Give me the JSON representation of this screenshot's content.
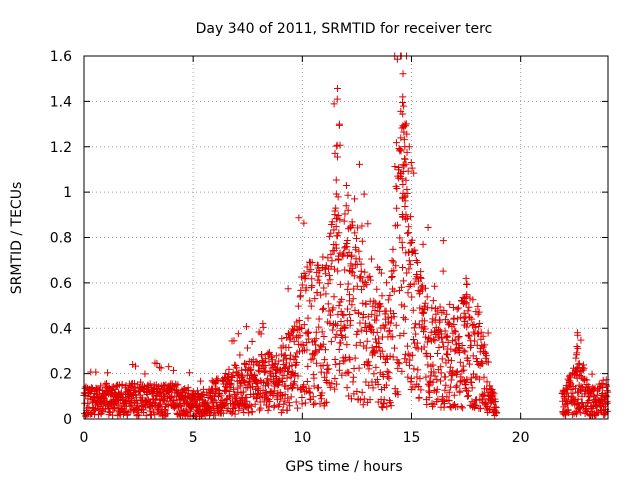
{
  "chart_data": {
    "type": "scatter",
    "title": "Day 340 of 2011, SRMTID for receiver terc",
    "xlabel": "GPS time / hours",
    "ylabel": "SRMTID / TECUs",
    "xlim": [
      0,
      24
    ],
    "ylim": [
      0,
      1.6
    ],
    "xticks": [
      0,
      5,
      10,
      15,
      20
    ],
    "xtick_labels": [
      "0",
      "5",
      "10",
      "15",
      "20"
    ],
    "yticks": [
      0,
      0.2,
      0.4,
      0.6,
      0.8,
      1.0,
      1.2,
      1.4,
      1.6
    ],
    "ytick_labels": [
      "0",
      "0.2",
      "0.4",
      "0.6",
      "0.8",
      "1",
      "1.2",
      "1.4",
      "1.6"
    ],
    "grid": true,
    "marker": "+",
    "color": "#e00000",
    "envelope_hours": [
      0,
      1,
      2,
      3,
      4,
      5,
      5.5,
      6,
      7,
      8,
      9,
      9.7,
      10,
      10.5,
      11,
      11.5,
      12,
      12.5,
      13,
      13.5,
      14,
      14.3,
      14.6,
      15,
      15.5,
      16,
      16.5,
      17,
      17.5,
      18,
      18.5,
      18.8,
      22,
      22.5,
      22.8,
      23.2,
      23.8
    ],
    "envelope_values": [
      0.08,
      0.09,
      0.09,
      0.09,
      0.09,
      0.07,
      0.06,
      0.1,
      0.14,
      0.16,
      0.18,
      0.25,
      0.4,
      0.4,
      0.38,
      0.55,
      0.6,
      0.45,
      0.38,
      0.32,
      0.3,
      0.7,
      0.75,
      0.5,
      0.35,
      0.3,
      0.28,
      0.3,
      0.32,
      0.3,
      0.15,
      0.05,
      0.08,
      0.14,
      0.15,
      0.08,
      0.1
    ],
    "peaks": [
      {
        "x": 11.6,
        "y": 1.41
      },
      {
        "x": 11.7,
        "y": 1.3
      },
      {
        "x": 12.1,
        "y": 0.92
      },
      {
        "x": 14.5,
        "y": 1.6
      },
      {
        "x": 14.6,
        "y": 1.42
      },
      {
        "x": 14.7,
        "y": 1.3
      },
      {
        "x": 14.9,
        "y": 1.2
      },
      {
        "x": 17.5,
        "y": 0.62
      },
      {
        "x": 22.6,
        "y": 0.38
      }
    ],
    "data_gap_hours": [
      18.9,
      21.9
    ],
    "num_points": 2400
  }
}
